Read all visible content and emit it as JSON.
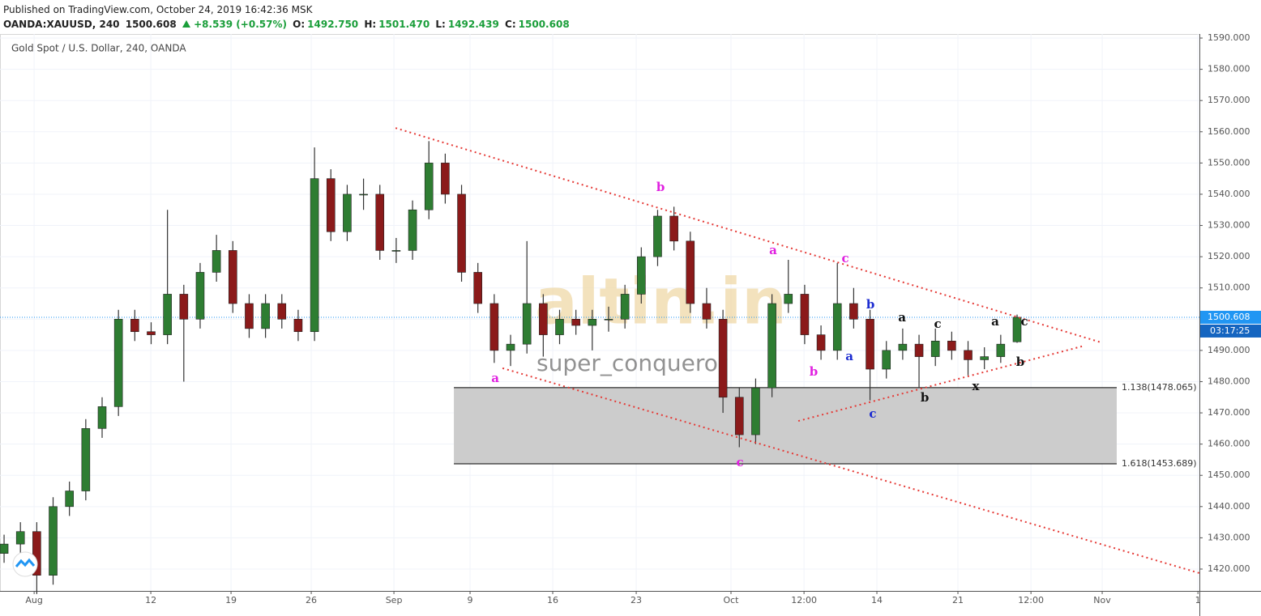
{
  "header": {
    "published": "Published on TradingView.com, October 24, 2019 16:42:36 MSK",
    "symbol": "OANDA:XAUUSD, 240",
    "last": "1500.608",
    "change": "+8.539 (+0.57%)",
    "o_label": "O:",
    "o": "1492.750",
    "h_label": "H:",
    "h": "1501.470",
    "l_label": "L:",
    "l": "1492.439",
    "c_label": "C:",
    "c": "1500.608"
  },
  "chart_data": {
    "type": "candlestick",
    "legend": "Gold Spot / U.S. Dollar, 240, OANDA",
    "up_color": "#2e7d32",
    "down_color": "#8b1a1a",
    "wick_color": "#333333",
    "grid": true,
    "open": [
      1425,
      1428,
      1432,
      1418,
      1440,
      1445,
      1465,
      1472,
      1500,
      1496,
      1495,
      1508,
      1500,
      1515,
      1522,
      1505,
      1497,
      1505,
      1500,
      1496,
      1545,
      1528,
      1540,
      1540,
      1522,
      1522,
      1535,
      1550,
      1540,
      1515,
      1505,
      1490,
      1492,
      1505,
      1495,
      1500,
      1498,
      1500,
      1500,
      1508,
      1520,
      1533,
      1525,
      1505,
      1500,
      1475,
      1463,
      1478,
      1505,
      1508,
      1495,
      1490,
      1505,
      1500,
      1484,
      1490,
      1492,
      1488,
      1493,
      1490,
      1487,
      1488,
      1492.75
    ],
    "high": [
      1431,
      1435,
      1435,
      1443,
      1448,
      1468,
      1475,
      1503,
      1503,
      1499,
      1535,
      1511,
      1518,
      1527,
      1525,
      1508,
      1508,
      1508,
      1503,
      1555,
      1548,
      1543,
      1545,
      1543,
      1526,
      1538,
      1557,
      1553,
      1543,
      1518,
      1508,
      1495,
      1525,
      1508,
      1503,
      1503,
      1503,
      1504,
      1511,
      1523,
      1535,
      1536,
      1528,
      1510,
      1503,
      1478,
      1481,
      1508,
      1519,
      1511,
      1498,
      1518,
      1510,
      1503,
      1493,
      1497,
      1495,
      1497,
      1496,
      1493,
      1491,
      1495,
      1501.47
    ],
    "low": [
      1422,
      1425,
      1412,
      1415,
      1437,
      1442,
      1462,
      1469,
      1493,
      1492,
      1492,
      1480,
      1497,
      1512,
      1502,
      1494,
      1494,
      1497,
      1493,
      1493,
      1525,
      1525,
      1535,
      1519,
      1518,
      1519,
      1532,
      1537,
      1512,
      1502,
      1486,
      1485,
      1489,
      1488,
      1492,
      1495,
      1490,
      1496,
      1497,
      1505,
      1517,
      1522,
      1502,
      1497,
      1470,
      1459,
      1460,
      1475,
      1502,
      1492,
      1487,
      1487,
      1497,
      1474,
      1481,
      1487,
      1478,
      1485,
      1487,
      1482,
      1484,
      1486,
      1492.439
    ],
    "close": [
      1428,
      1432,
      1418,
      1440,
      1445,
      1465,
      1472,
      1500,
      1496,
      1495,
      1508,
      1500,
      1515,
      1522,
      1505,
      1497,
      1505,
      1500,
      1496,
      1545,
      1528,
      1540,
      1540,
      1522,
      1522,
      1535,
      1550,
      1540,
      1515,
      1505,
      1490,
      1492,
      1505,
      1495,
      1500,
      1498,
      1500,
      1500,
      1508,
      1520,
      1533,
      1525,
      1505,
      1500,
      1475,
      1463,
      1478,
      1505,
      1508,
      1495,
      1490,
      1505,
      1500,
      1484,
      1490,
      1492,
      1488,
      1493,
      1490,
      1487,
      1488,
      1492,
      1500.608
    ],
    "ylim": [
      1413.0,
      1591.3
    ],
    "yticks": [
      {
        "value": 1420,
        "label": "1420.000"
      },
      {
        "value": 1430,
        "label": "1430.000"
      },
      {
        "value": 1440,
        "label": "1440.000"
      },
      {
        "value": 1450,
        "label": "1450.000"
      },
      {
        "value": 1460,
        "label": "1460.000"
      },
      {
        "value": 1470,
        "label": "1470.000"
      },
      {
        "value": 1480,
        "label": "1480.000"
      },
      {
        "value": 1490,
        "label": "1490.000"
      },
      {
        "value": 1500,
        "label": "1500.000"
      },
      {
        "value": 1510,
        "label": "1510.000"
      },
      {
        "value": 1520,
        "label": "1520.000"
      },
      {
        "value": 1530,
        "label": "1530.000"
      },
      {
        "value": 1540,
        "label": "1540.000"
      },
      {
        "value": 1550,
        "label": "1550.000"
      },
      {
        "value": 1560,
        "label": "1560.000"
      },
      {
        "value": 1570,
        "label": "1570.000"
      },
      {
        "value": 1580,
        "label": "1580.000"
      },
      {
        "value": 1590,
        "label": "1590.000"
      }
    ],
    "xlim": [
      -0.25,
      73.16
    ],
    "xticks": [
      {
        "value": 1.84,
        "label": "Aug"
      },
      {
        "value": 8.98,
        "label": "12"
      },
      {
        "value": 13.89,
        "label": "19"
      },
      {
        "value": 18.8,
        "label": "26"
      },
      {
        "value": 23.86,
        "label": "Sep"
      },
      {
        "value": 28.52,
        "label": "9"
      },
      {
        "value": 33.58,
        "label": "16"
      },
      {
        "value": 38.69,
        "label": "23"
      },
      {
        "value": 44.49,
        "label": "Oct"
      },
      {
        "value": 48.96,
        "label": "12:00"
      },
      {
        "value": 53.42,
        "label": "14"
      },
      {
        "value": 58.38,
        "label": "21"
      },
      {
        "value": 62.85,
        "label": "12:00"
      },
      {
        "value": 67.21,
        "label": "Nov"
      },
      {
        "value": 73.07,
        "label": "1"
      }
    ],
    "last_price": 1500.608,
    "countdown": "03:17:25",
    "last_color": "#2196f3",
    "zone": {
      "top": 1478.065,
      "bottom": 1453.689,
      "x0": 27.53,
      "x1": 68.1,
      "top_label": "1.138(1478.065)",
      "bottom_label": "1.618(1453.689)"
    },
    "trendlines": [
      {
        "x0": 23.96,
        "y0": 1561.2,
        "x1": 67.11,
        "y1": 1492.6
      },
      {
        "x0": 30.51,
        "y0": 1484.3,
        "x1": 73.16,
        "y1": 1418.7
      },
      {
        "x0": 48.61,
        "y0": 1467.4,
        "x1": 65.97,
        "y1": 1491.3
      }
    ],
    "trend_color": "#e53935",
    "annotations": [
      {
        "text": "b",
        "color": "#e020e0",
        "x": 40.18,
        "y": 1542.1
      },
      {
        "text": "a",
        "color": "#e020e0",
        "x": 30.06,
        "y": 1480.9
      },
      {
        "text": "c",
        "color": "#e020e0",
        "x": 45.04,
        "y": 1454
      },
      {
        "text": "a",
        "color": "#e020e0",
        "x": 47.07,
        "y": 1521.8
      },
      {
        "text": "b",
        "color": "#e020e0",
        "x": 49.55,
        "y": 1483
      },
      {
        "text": "c",
        "color": "#e020e0",
        "x": 51.49,
        "y": 1519.3
      },
      {
        "text": "b",
        "color": "#1a2ad0",
        "x": 53.03,
        "y": 1504.5
      },
      {
        "text": "a",
        "color": "#1a2ad0",
        "x": 51.74,
        "y": 1487.9
      },
      {
        "text": "c",
        "color": "#1a2ad0",
        "x": 53.17,
        "y": 1469.5
      },
      {
        "text": "a",
        "color": "#111111",
        "x": 54.96,
        "y": 1500.3
      },
      {
        "text": "b",
        "color": "#111111",
        "x": 56.35,
        "y": 1474.7
      },
      {
        "text": "c",
        "color": "#111111",
        "x": 57.14,
        "y": 1498.3
      },
      {
        "text": "x",
        "color": "#111111",
        "x": 59.47,
        "y": 1478.3
      },
      {
        "text": "a",
        "color": "#111111",
        "x": 60.66,
        "y": 1499
      },
      {
        "text": "c",
        "color": "#111111",
        "x": 62.45,
        "y": 1499
      },
      {
        "text": "b",
        "color": "#111111",
        "x": 62.2,
        "y": 1486.1
      }
    ],
    "watermark": {
      "logo": "altin.in",
      "author": "super_conqueror"
    }
  }
}
